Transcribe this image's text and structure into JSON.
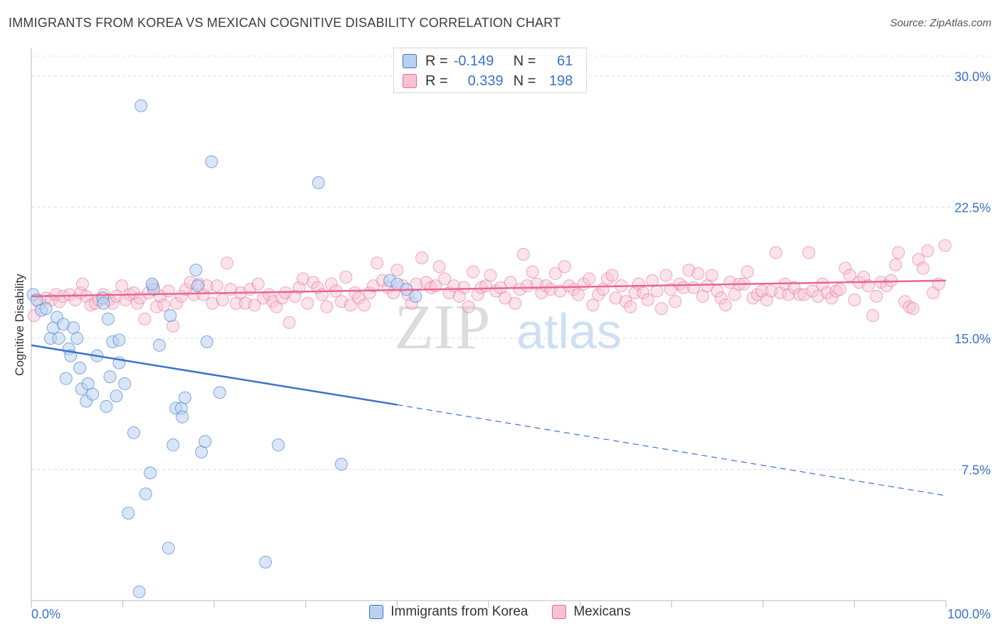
{
  "title": "IMMIGRANTS FROM KOREA VS MEXICAN COGNITIVE DISABILITY CORRELATION CHART",
  "source": "Source: ZipAtlas.com",
  "watermark": {
    "zip": "ZIP",
    "atlas": "atlas"
  },
  "colors": {
    "korea": "#3a73c9",
    "korea_fill": "#b8d1f0",
    "mexicans": "#e8668f",
    "mexicans_fill": "#f7c2d3",
    "value_text": "#3a73c9"
  },
  "legend_top": {
    "rows": [
      {
        "r_label": "R =",
        "r_value": "-0.149",
        "n_label": "N =",
        "n_value": "61"
      },
      {
        "r_label": "R =",
        "r_value": "0.339",
        "n_label": "N =",
        "n_value": "198"
      }
    ]
  },
  "bottom_legend": [
    "Immigrants from Korea",
    "Mexicans"
  ],
  "chart_data": {
    "type": "scatter",
    "title": "IMMIGRANTS FROM KOREA VS MEXICAN COGNITIVE DISABILITY CORRELATION CHART",
    "xlabel": "",
    "ylabel": "Cognitive Disability",
    "xlim": [
      0,
      100
    ],
    "ylim": [
      0,
      31.5
    ],
    "x_tick_labels": [
      "0.0%",
      "100.0%"
    ],
    "y_ticks": [
      7.5,
      15.0,
      22.5,
      30.0
    ],
    "y_tick_labels": [
      "7.5%",
      "15.0%",
      "22.5%",
      "30.0%"
    ],
    "grid": true,
    "legend": "bottom-center",
    "series": [
      {
        "name": "Immigrants from Korea",
        "points": [
          [
            0.2,
            17.5
          ],
          [
            0.6,
            17.2
          ],
          [
            1.1,
            16.6
          ],
          [
            1.6,
            16.7
          ],
          [
            2.1,
            15.0
          ],
          [
            2.4,
            15.6
          ],
          [
            2.8,
            16.2
          ],
          [
            3.0,
            15.0
          ],
          [
            3.5,
            15.8
          ],
          [
            3.8,
            12.7
          ],
          [
            4.1,
            14.4
          ],
          [
            4.3,
            14.0
          ],
          [
            4.6,
            15.6
          ],
          [
            5.0,
            15.0
          ],
          [
            5.3,
            13.3
          ],
          [
            5.5,
            12.1
          ],
          [
            6.2,
            12.4
          ],
          [
            6.0,
            11.4
          ],
          [
            6.7,
            11.8
          ],
          [
            7.2,
            14.0
          ],
          [
            7.8,
            17.3
          ],
          [
            7.9,
            17.0
          ],
          [
            8.2,
            11.1
          ],
          [
            8.4,
            16.1
          ],
          [
            8.6,
            12.8
          ],
          [
            8.9,
            14.8
          ],
          [
            9.3,
            11.7
          ],
          [
            9.6,
            13.6
          ],
          [
            9.6,
            14.9
          ],
          [
            10.2,
            12.4
          ],
          [
            10.6,
            5.0
          ],
          [
            11.2,
            9.6
          ],
          [
            11.8,
            0.5
          ],
          [
            12.0,
            28.3
          ],
          [
            12.5,
            6.1
          ],
          [
            13.0,
            7.3
          ],
          [
            13.4,
            17.8
          ],
          [
            13.2,
            18.1
          ],
          [
            14.0,
            14.6
          ],
          [
            15.0,
            3.0
          ],
          [
            15.2,
            16.3
          ],
          [
            15.5,
            8.9
          ],
          [
            15.8,
            11.0
          ],
          [
            16.4,
            11.0
          ],
          [
            16.5,
            10.5
          ],
          [
            16.8,
            11.6
          ],
          [
            18.0,
            18.9
          ],
          [
            18.2,
            18.0
          ],
          [
            18.6,
            8.5
          ],
          [
            19.0,
            9.1
          ],
          [
            19.2,
            14.8
          ],
          [
            19.7,
            25.1
          ],
          [
            20.6,
            11.9
          ],
          [
            25.6,
            2.2
          ],
          [
            27.0,
            8.9
          ],
          [
            31.4,
            23.9
          ],
          [
            33.9,
            7.8
          ],
          [
            39.2,
            18.3
          ],
          [
            40.0,
            18.1
          ],
          [
            41.0,
            17.8
          ],
          [
            42.0,
            17.4
          ]
        ]
      },
      {
        "name": "Mexicans",
        "points": [
          [
            0.3,
            16.3
          ],
          [
            0.9,
            17.0
          ],
          [
            1.6,
            17.3
          ],
          [
            2.2,
            17.2
          ],
          [
            2.7,
            17.5
          ],
          [
            3.1,
            17.1
          ],
          [
            3.5,
            17.4
          ],
          [
            4.2,
            17.5
          ],
          [
            4.8,
            17.2
          ],
          [
            5.4,
            17.6
          ],
          [
            5.6,
            18.1
          ],
          [
            6.0,
            17.4
          ],
          [
            6.5,
            16.9
          ],
          [
            7.0,
            17.0
          ],
          [
            7.4,
            17.2
          ],
          [
            7.9,
            17.5
          ],
          [
            8.5,
            17.2
          ],
          [
            8.9,
            17.0
          ],
          [
            9.3,
            17.4
          ],
          [
            9.9,
            18.0
          ],
          [
            10.3,
            17.2
          ],
          [
            10.8,
            17.5
          ],
          [
            11.2,
            17.6
          ],
          [
            11.6,
            17.0
          ],
          [
            11.9,
            17.3
          ],
          [
            12.4,
            16.1
          ],
          [
            12.8,
            17.6
          ],
          [
            13.3,
            18.0
          ],
          [
            13.7,
            16.8
          ],
          [
            14.1,
            17.4
          ],
          [
            14.5,
            16.9
          ],
          [
            15.0,
            17.7
          ],
          [
            15.5,
            15.7
          ],
          [
            15.9,
            17.0
          ],
          [
            16.4,
            17.4
          ],
          [
            16.9,
            17.8
          ],
          [
            17.4,
            18.2
          ],
          [
            17.8,
            17.5
          ],
          [
            18.3,
            18.1
          ],
          [
            18.8,
            17.5
          ],
          [
            19.2,
            18.0
          ],
          [
            19.8,
            17.0
          ],
          [
            20.3,
            18.0
          ],
          [
            20.9,
            17.2
          ],
          [
            21.4,
            19.3
          ],
          [
            21.8,
            17.8
          ],
          [
            22.4,
            17.0
          ],
          [
            22.9,
            17.6
          ],
          [
            23.4,
            17.0
          ],
          [
            23.9,
            17.8
          ],
          [
            24.4,
            16.9
          ],
          [
            24.8,
            18.1
          ],
          [
            25.4,
            17.3
          ],
          [
            26.0,
            17.5
          ],
          [
            26.4,
            17.1
          ],
          [
            26.8,
            16.8
          ],
          [
            27.4,
            17.3
          ],
          [
            27.8,
            17.6
          ],
          [
            28.2,
            15.9
          ],
          [
            28.8,
            17.4
          ],
          [
            29.3,
            17.9
          ],
          [
            29.7,
            18.4
          ],
          [
            30.2,
            17.0
          ],
          [
            30.8,
            18.2
          ],
          [
            31.3,
            17.9
          ],
          [
            31.8,
            17.5
          ],
          [
            32.3,
            16.8
          ],
          [
            32.8,
            18.1
          ],
          [
            33.3,
            17.7
          ],
          [
            33.9,
            17.1
          ],
          [
            34.4,
            18.5
          ],
          [
            34.9,
            16.9
          ],
          [
            35.4,
            17.6
          ],
          [
            35.8,
            17.3
          ],
          [
            36.4,
            16.9
          ],
          [
            37.0,
            17.6
          ],
          [
            37.4,
            18.0
          ],
          [
            37.8,
            19.3
          ],
          [
            38.4,
            18.3
          ],
          [
            39.0,
            17.9
          ],
          [
            39.6,
            17.6
          ],
          [
            40.0,
            18.9
          ],
          [
            40.6,
            18.0
          ],
          [
            41.2,
            17.5
          ],
          [
            41.6,
            17.0
          ],
          [
            42.1,
            18.1
          ],
          [
            42.7,
            19.6
          ],
          [
            43.2,
            18.2
          ],
          [
            43.7,
            17.9
          ],
          [
            44.2,
            18.0
          ],
          [
            44.6,
            19.1
          ],
          [
            45.2,
            18.4
          ],
          [
            45.7,
            17.6
          ],
          [
            46.2,
            18.0
          ],
          [
            46.8,
            17.4
          ],
          [
            47.3,
            17.9
          ],
          [
            47.8,
            16.8
          ],
          [
            48.3,
            18.8
          ],
          [
            48.8,
            17.5
          ],
          [
            49.2,
            17.9
          ],
          [
            49.7,
            18.0
          ],
          [
            50.2,
            18.6
          ],
          [
            50.8,
            17.7
          ],
          [
            51.3,
            17.9
          ],
          [
            51.8,
            17.3
          ],
          [
            52.4,
            18.2
          ],
          [
            52.9,
            17.0
          ],
          [
            53.4,
            17.8
          ],
          [
            53.8,
            19.8
          ],
          [
            54.2,
            18.0
          ],
          [
            54.8,
            18.8
          ],
          [
            55.3,
            18.1
          ],
          [
            55.8,
            17.6
          ],
          [
            56.3,
            18.0
          ],
          [
            56.8,
            17.8
          ],
          [
            57.3,
            18.7
          ],
          [
            57.8,
            17.7
          ],
          [
            58.3,
            19.1
          ],
          [
            58.8,
            18.0
          ],
          [
            59.3,
            17.8
          ],
          [
            59.8,
            17.5
          ],
          [
            60.4,
            18.1
          ],
          [
            61.0,
            18.4
          ],
          [
            61.4,
            16.9
          ],
          [
            62.0,
            17.5
          ],
          [
            62.5,
            17.8
          ],
          [
            63.0,
            18.4
          ],
          [
            63.5,
            18.6
          ],
          [
            63.9,
            17.3
          ],
          [
            64.5,
            18.0
          ],
          [
            65.0,
            17.1
          ],
          [
            65.5,
            16.8
          ],
          [
            66.0,
            17.6
          ],
          [
            66.4,
            18.1
          ],
          [
            66.9,
            17.6
          ],
          [
            67.4,
            17.2
          ],
          [
            67.9,
            18.3
          ],
          [
            68.4,
            17.7
          ],
          [
            68.9,
            16.7
          ],
          [
            69.4,
            18.6
          ],
          [
            69.9,
            17.8
          ],
          [
            70.4,
            17.1
          ],
          [
            70.9,
            18.1
          ],
          [
            71.3,
            17.9
          ],
          [
            71.9,
            18.9
          ],
          [
            72.4,
            17.9
          ],
          [
            72.9,
            18.7
          ],
          [
            73.4,
            17.4
          ],
          [
            73.9,
            18.0
          ],
          [
            74.4,
            18.6
          ],
          [
            75.0,
            17.7
          ],
          [
            75.4,
            17.3
          ],
          [
            75.9,
            16.9
          ],
          [
            76.4,
            18.2
          ],
          [
            76.9,
            17.5
          ],
          [
            77.4,
            18.1
          ],
          [
            77.9,
            18.1
          ],
          [
            78.3,
            18.8
          ],
          [
            78.9,
            17.3
          ],
          [
            79.4,
            17.5
          ],
          [
            79.9,
            17.7
          ],
          [
            80.4,
            17.2
          ],
          [
            80.9,
            17.7
          ],
          [
            81.4,
            19.9
          ],
          [
            81.9,
            17.6
          ],
          [
            82.4,
            18.1
          ],
          [
            82.8,
            17.5
          ],
          [
            83.4,
            17.9
          ],
          [
            84.0,
            17.5
          ],
          [
            84.5,
            17.5
          ],
          [
            85.0,
            19.9
          ],
          [
            85.4,
            17.7
          ],
          [
            86.0,
            17.4
          ],
          [
            86.5,
            18.1
          ],
          [
            87.0,
            17.6
          ],
          [
            87.5,
            17.3
          ],
          [
            88.0,
            17.7
          ],
          [
            88.4,
            17.8
          ],
          [
            89.0,
            19.0
          ],
          [
            89.5,
            18.6
          ],
          [
            90.0,
            17.2
          ],
          [
            90.5,
            18.2
          ],
          [
            91.0,
            18.5
          ],
          [
            91.5,
            18.0
          ],
          [
            92.0,
            16.3
          ],
          [
            92.4,
            17.4
          ],
          [
            92.9,
            18.2
          ],
          [
            93.5,
            18.0
          ],
          [
            94.0,
            18.3
          ],
          [
            94.5,
            19.2
          ],
          [
            94.8,
            19.9
          ],
          [
            95.5,
            17.1
          ],
          [
            96.0,
            16.8
          ],
          [
            96.4,
            16.7
          ],
          [
            97.0,
            19.5
          ],
          [
            97.5,
            19.0
          ],
          [
            98.0,
            20.0
          ],
          [
            98.6,
            17.6
          ],
          [
            99.2,
            18.1
          ],
          [
            99.9,
            20.3
          ]
        ]
      }
    ],
    "trendlines": [
      {
        "series": "Immigrants from Korea",
        "x": [
          0,
          40
        ],
        "y": [
          14.6,
          11.2
        ],
        "dashed_extension_to": [
          100,
          6.0
        ]
      },
      {
        "series": "Mexicans",
        "x": [
          0,
          100
        ],
        "y": [
          17.4,
          18.3
        ]
      }
    ]
  }
}
